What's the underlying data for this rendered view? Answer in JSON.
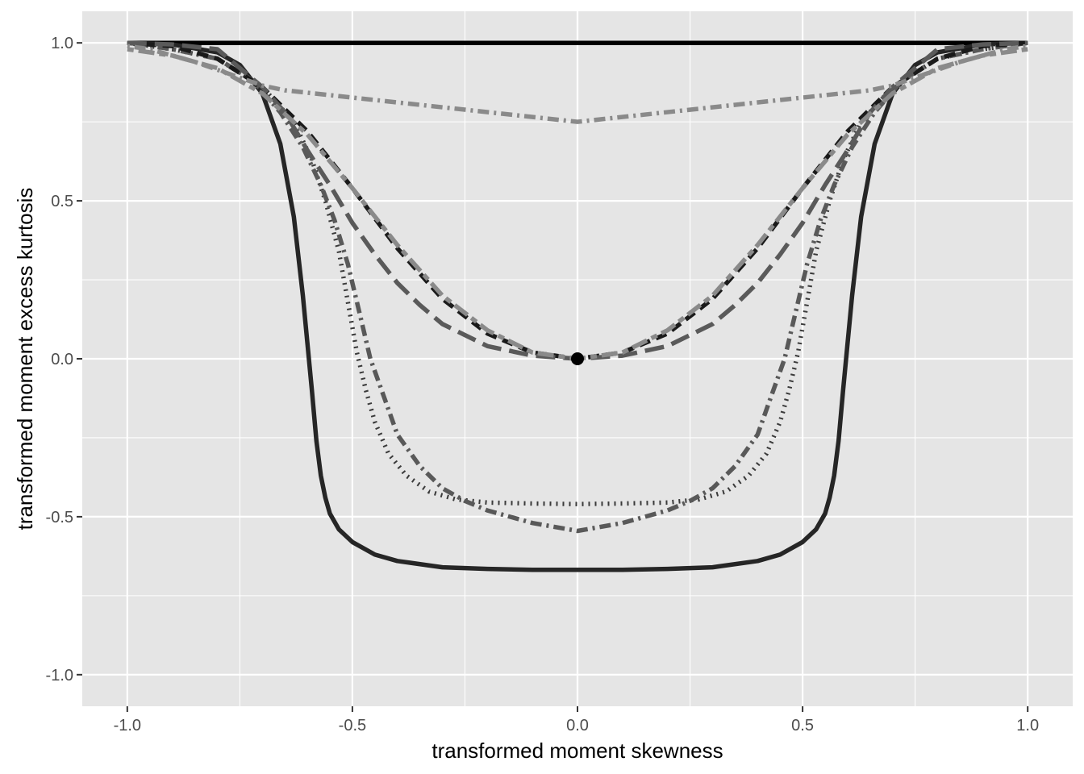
{
  "chart_data": {
    "type": "line",
    "title": "",
    "xlabel": "transformed moment skewness",
    "ylabel": "transformed moment excess kurtosis",
    "xlim": [
      -1.1,
      1.1
    ],
    "ylim": [
      -1.1,
      1.1
    ],
    "x_ticks": [
      -1.0,
      -0.5,
      0.0,
      0.5,
      1.0
    ],
    "x_tick_labels": [
      "-1.0",
      "-0.5",
      "0.0",
      "0.5",
      "1.0"
    ],
    "y_ticks": [
      -1.0,
      -0.5,
      0.0,
      0.5,
      1.0
    ],
    "y_tick_labels": [
      "-1.0",
      "-0.5",
      "0.0",
      "0.5",
      "1.0"
    ],
    "grid": true,
    "legend": "none",
    "background": "#e5e5e5",
    "grid_color": "#ffffff",
    "series": [
      {
        "color": "#000000",
        "dash": "solid",
        "x": [
          -1.0,
          1.0
        ],
        "y": [
          1.0,
          1.0
        ]
      },
      {
        "color": "#262626",
        "dash": "solid",
        "x": [
          -1.0,
          -0.9,
          -0.8,
          -0.75,
          -0.7,
          -0.66,
          -0.63,
          -0.61,
          -0.6,
          -0.59,
          -0.58,
          -0.57,
          -0.56,
          -0.55,
          -0.53,
          -0.5,
          -0.45,
          -0.4,
          -0.3,
          -0.2,
          -0.1,
          0.0,
          0.1,
          0.2,
          0.3,
          0.4,
          0.45,
          0.5,
          0.53,
          0.55,
          0.56,
          0.57,
          0.58,
          0.59,
          0.6,
          0.61,
          0.63,
          0.66,
          0.7,
          0.75,
          0.8,
          0.9,
          1.0
        ],
        "y": [
          1.0,
          0.995,
          0.97,
          0.93,
          0.84,
          0.68,
          0.45,
          0.2,
          0.05,
          -0.1,
          -0.26,
          -0.37,
          -0.44,
          -0.49,
          -0.54,
          -0.58,
          -0.62,
          -0.64,
          -0.66,
          -0.665,
          -0.668,
          -0.668,
          -0.668,
          -0.665,
          -0.66,
          -0.64,
          -0.62,
          -0.58,
          -0.54,
          -0.49,
          -0.44,
          -0.37,
          -0.26,
          -0.1,
          0.05,
          0.2,
          0.45,
          0.68,
          0.84,
          0.93,
          0.97,
          0.995,
          1.0
        ]
      },
      {
        "color": "#3a3a3a",
        "dash": "dotted",
        "x": [
          -1.0,
          -0.9,
          -0.8,
          -0.7,
          -0.63,
          -0.59,
          -0.56,
          -0.53,
          -0.51,
          -0.49,
          -0.47,
          -0.45,
          -0.42,
          -0.38,
          -0.33,
          -0.27,
          -0.2,
          -0.1,
          0.0,
          0.1,
          0.2,
          0.27,
          0.33,
          0.38,
          0.42,
          0.45,
          0.47,
          0.49,
          0.51,
          0.53,
          0.56,
          0.59,
          0.63,
          0.7,
          0.8,
          0.9,
          1.0
        ],
        "y": [
          1.0,
          0.98,
          0.95,
          0.86,
          0.75,
          0.63,
          0.5,
          0.34,
          0.18,
          0.02,
          -0.1,
          -0.2,
          -0.3,
          -0.37,
          -0.42,
          -0.445,
          -0.455,
          -0.458,
          -0.46,
          -0.458,
          -0.455,
          -0.445,
          -0.42,
          -0.37,
          -0.3,
          -0.2,
          -0.1,
          0.02,
          0.18,
          0.34,
          0.5,
          0.63,
          0.75,
          0.86,
          0.95,
          0.98,
          1.0
        ]
      },
      {
        "color": "#595959",
        "dash": "dotdash",
        "x": [
          -1.0,
          -0.9,
          -0.8,
          -0.72,
          -0.66,
          -0.61,
          -0.57,
          -0.54,
          -0.51,
          -0.48,
          -0.46,
          -0.43,
          -0.4,
          -0.35,
          -0.3,
          -0.25,
          -0.2,
          -0.1,
          0.0,
          0.1,
          0.2,
          0.25,
          0.3,
          0.35,
          0.4,
          0.43,
          0.46,
          0.48,
          0.51,
          0.54,
          0.57,
          0.61,
          0.66,
          0.72,
          0.8,
          0.9,
          1.0
        ],
        "y": [
          1.0,
          0.98,
          0.95,
          0.88,
          0.78,
          0.67,
          0.55,
          0.44,
          0.3,
          0.12,
          0.0,
          -0.12,
          -0.24,
          -0.34,
          -0.41,
          -0.45,
          -0.48,
          -0.52,
          -0.545,
          -0.52,
          -0.48,
          -0.45,
          -0.41,
          -0.34,
          -0.24,
          -0.12,
          0.0,
          0.12,
          0.3,
          0.44,
          0.55,
          0.67,
          0.78,
          0.88,
          0.95,
          0.98,
          1.0
        ]
      },
      {
        "color": "#1a1a1a",
        "dash": "dashed",
        "x": [
          -1.0,
          -0.9,
          -0.8,
          -0.7,
          -0.6,
          -0.5,
          -0.4,
          -0.3,
          -0.2,
          -0.1,
          0.0,
          0.1,
          0.2,
          0.3,
          0.4,
          0.5,
          0.6,
          0.7,
          0.8,
          0.9,
          1.0
        ],
        "y": [
          1.0,
          0.99,
          0.95,
          0.86,
          0.72,
          0.54,
          0.35,
          0.19,
          0.08,
          0.02,
          0.0,
          0.02,
          0.08,
          0.19,
          0.35,
          0.54,
          0.72,
          0.86,
          0.95,
          0.99,
          1.0
        ]
      },
      {
        "color": "#5a5a5a",
        "dash": "longdash",
        "x": [
          -1.0,
          -0.9,
          -0.8,
          -0.7,
          -0.65,
          -0.6,
          -0.55,
          -0.5,
          -0.45,
          -0.4,
          -0.35,
          -0.3,
          -0.2,
          -0.1,
          0.0,
          0.1,
          0.2,
          0.3,
          0.35,
          0.4,
          0.45,
          0.5,
          0.55,
          0.6,
          0.65,
          0.7,
          0.8,
          0.9,
          1.0
        ],
        "y": [
          1.0,
          0.995,
          0.98,
          0.86,
          0.78,
          0.66,
          0.55,
          0.43,
          0.33,
          0.24,
          0.17,
          0.11,
          0.04,
          0.01,
          0.0,
          0.01,
          0.04,
          0.11,
          0.17,
          0.24,
          0.33,
          0.43,
          0.55,
          0.66,
          0.78,
          0.86,
          0.98,
          0.995,
          1.0
        ]
      },
      {
        "color": "#8a8a8a",
        "dash": "twodash",
        "x": [
          -1.0,
          -0.9,
          -0.8,
          -0.7,
          -0.6,
          -0.5,
          -0.4,
          -0.3,
          -0.2,
          -0.1,
          0.0,
          0.1,
          0.2,
          0.3,
          0.4,
          0.5,
          0.6,
          0.7,
          0.8,
          0.9,
          1.0
        ],
        "y": [
          0.98,
          0.96,
          0.92,
          0.84,
          0.71,
          0.54,
          0.36,
          0.2,
          0.09,
          0.02,
          0.0,
          0.02,
          0.09,
          0.2,
          0.36,
          0.54,
          0.71,
          0.84,
          0.92,
          0.96,
          0.98
        ]
      },
      {
        "color": "#8a8a8a",
        "dash": "dotdash",
        "x": [
          -1.0,
          -0.95,
          -0.9,
          -0.85,
          -0.8,
          -0.75,
          -0.7,
          -0.65,
          0.0,
          0.65,
          0.7,
          0.75,
          0.8,
          0.85,
          0.9,
          0.95,
          1.0
        ],
        "y": [
          0.99,
          0.98,
          0.96,
          0.94,
          0.915,
          0.89,
          0.865,
          0.85,
          0.75,
          0.85,
          0.865,
          0.89,
          0.915,
          0.94,
          0.96,
          0.98,
          0.99
        ]
      }
    ],
    "points": [
      {
        "x": 0.0,
        "y": 0.0,
        "color": "#000000"
      }
    ]
  }
}
